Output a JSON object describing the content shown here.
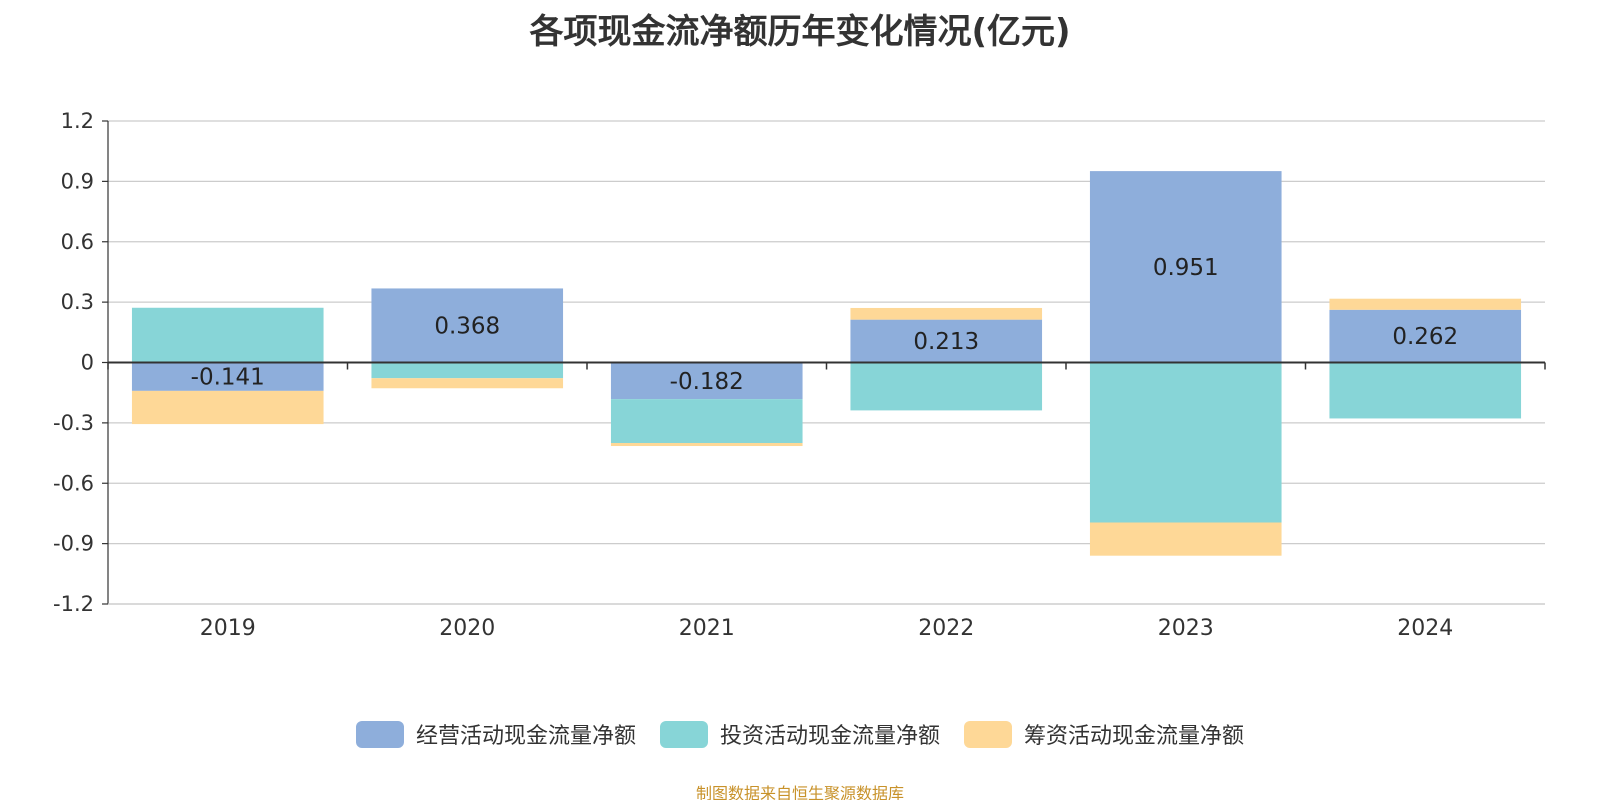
{
  "chart_data": {
    "type": "bar",
    "stacked": true,
    "title": "各项现金流净额历年变化情况(亿元)",
    "categories": [
      "2019",
      "2020",
      "2021",
      "2022",
      "2023",
      "2024"
    ],
    "series": [
      {
        "name": "经营活动现金流量净额",
        "color": "#8eaedb",
        "values": [
          -0.141,
          0.368,
          -0.182,
          0.213,
          0.951,
          0.262
        ],
        "labels": [
          "-0.141",
          "0.368",
          "-0.182",
          "0.213",
          "0.951",
          "0.262"
        ]
      },
      {
        "name": "投资活动现金流量净额",
        "color": "#87d5d7",
        "values": [
          0.272,
          -0.078,
          -0.218,
          -0.238,
          -0.795,
          -0.278
        ]
      },
      {
        "name": "筹资活动现金流量净额",
        "color": "#fed897",
        "values": [
          -0.165,
          -0.05,
          -0.015,
          0.058,
          -0.165,
          0.055
        ]
      }
    ],
    "ylim": [
      -1.2,
      1.2
    ],
    "yticks": [
      "1.2",
      "0.9",
      "0.6",
      "0.3",
      "0",
      "-0.3",
      "-0.6",
      "-0.9",
      "-1.2"
    ],
    "ytick_values": [
      1.2,
      0.9,
      0.6,
      0.3,
      0,
      -0.3,
      -0.6,
      -0.9,
      -1.2
    ],
    "grid": true,
    "legend_position": "bottom-center"
  },
  "source": "制图数据来自恒生聚源数据库"
}
